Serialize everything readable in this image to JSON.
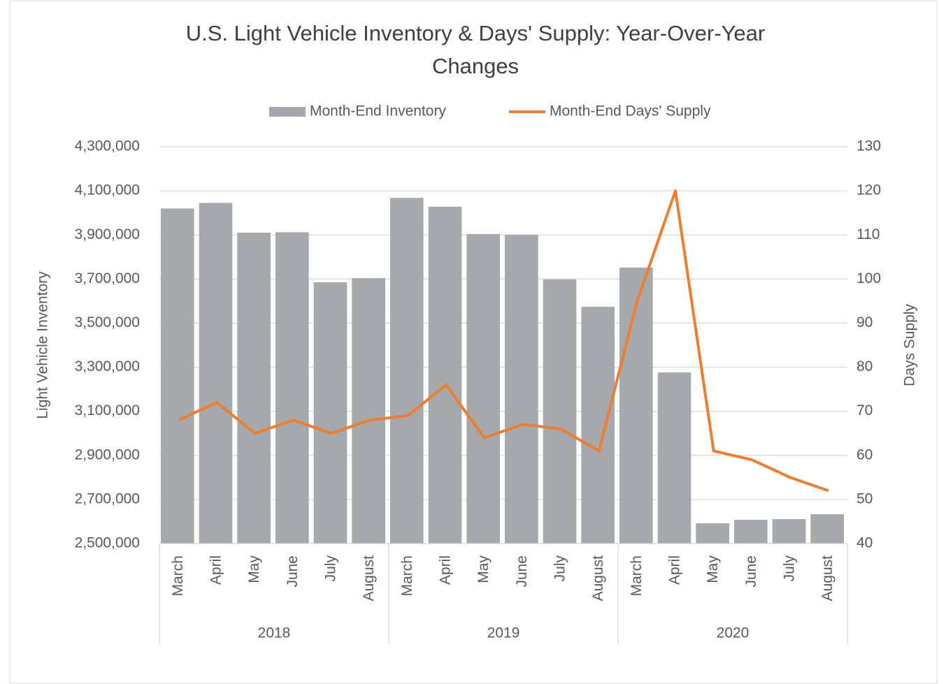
{
  "chart_data": {
    "type": "bar_line",
    "title": "U.S. Light Vehicle Inventory & Days' Supply: Year-Over-Year Changes",
    "y_label": "Light Vehicle Inventory",
    "y2_label": "Days Supply",
    "categories": [
      "March",
      "April",
      "May",
      "June",
      "July",
      "August",
      "March",
      "April",
      "May",
      "June",
      "July",
      "August",
      "March",
      "April",
      "May",
      "June",
      "July",
      "August"
    ],
    "groups": [
      "2018",
      "2019",
      "2020"
    ],
    "series": [
      {
        "name": "Month-End Inventory",
        "type": "bar",
        "color": "#a5a9ab",
        "values": [
          4020000,
          4045000,
          3910000,
          3912000,
          3685000,
          3704000,
          4068000,
          4028000,
          3904000,
          3901000,
          3698000,
          3574000,
          3752000,
          3276000,
          2592000,
          2608000,
          2611000,
          2633000
        ]
      },
      {
        "name": "Month-End Days' Supply",
        "type": "line",
        "axis": "y2",
        "color": "#ed7d31",
        "values": [
          68,
          72,
          65,
          68,
          65,
          68,
          69,
          76,
          64,
          67,
          66,
          61,
          95,
          120,
          61,
          59,
          55,
          52
        ]
      }
    ],
    "ylim": [
      2500000,
      4300000
    ],
    "yticks": [
      {
        "value": 2500000,
        "label": "2,500,000"
      },
      {
        "value": 2700000,
        "label": "2,700,000"
      },
      {
        "value": 2900000,
        "label": "2,900,000"
      },
      {
        "value": 3100000,
        "label": "3,100,000"
      },
      {
        "value": 3300000,
        "label": "3,300,000"
      },
      {
        "value": 3500000,
        "label": "3,500,000"
      },
      {
        "value": 3700000,
        "label": "3,700,000"
      },
      {
        "value": 3900000,
        "label": "3,900,000"
      },
      {
        "value": 4100000,
        "label": "4,100,000"
      },
      {
        "value": 4300000,
        "label": "4,300,000"
      }
    ],
    "y2lim": [
      40,
      130
    ],
    "y2ticks": [
      40,
      50,
      60,
      70,
      80,
      90,
      100,
      110,
      120,
      130
    ],
    "grid": true,
    "legend": "top"
  }
}
